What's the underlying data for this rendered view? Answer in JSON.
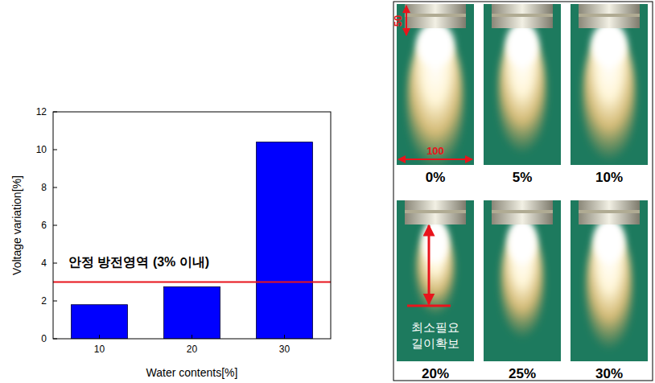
{
  "chart_data": {
    "type": "bar",
    "x_label": "Water contents[%]",
    "y_label": "Voltage variation[%]",
    "categories": [
      "10",
      "20",
      "30"
    ],
    "values": [
      1.8,
      2.75,
      10.4
    ],
    "color": "#0000ff",
    "ylim": [
      0,
      12
    ],
    "yticks": [
      0,
      2,
      4,
      6,
      8,
      10,
      12
    ],
    "reference_line": {
      "value": 3,
      "label": "안정 방전영역 (3% 이내)"
    }
  },
  "photo_panel": {
    "height_label": "50",
    "width_label": "100",
    "annotation": [
      "최소필요",
      "길이확보"
    ],
    "panels": [
      {
        "label": "0%"
      },
      {
        "label": "5%"
      },
      {
        "label": "10%"
      },
      {
        "label": "20%"
      },
      {
        "label": "25%"
      },
      {
        "label": "30%"
      }
    ]
  }
}
